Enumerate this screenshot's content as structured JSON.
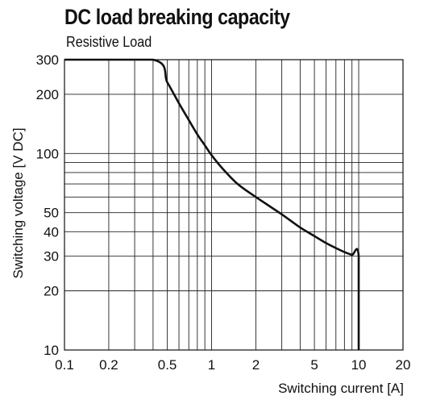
{
  "chart_data": {
    "type": "line",
    "title": "DC load breaking capacity",
    "subtitle": "Resistive Load",
    "xlabel": "Switching current [A]",
    "ylabel": "Switching voltage [V DC]",
    "x_scale": "log",
    "y_scale": "log",
    "xlim": [
      0.1,
      20
    ],
    "ylim": [
      10,
      300
    ],
    "x_tick_labels": [
      {
        "value": 0.1,
        "label": "0.1"
      },
      {
        "value": 0.2,
        "label": "0.2"
      },
      {
        "value": 0.5,
        "label": "0.5"
      },
      {
        "value": 1,
        "label": "1"
      },
      {
        "value": 2,
        "label": "2"
      },
      {
        "value": 5,
        "label": "5"
      },
      {
        "value": 10,
        "label": "10"
      },
      {
        "value": 20,
        "label": "20"
      }
    ],
    "y_tick_labels": [
      {
        "value": 300,
        "label": "300"
      },
      {
        "value": 200,
        "label": "200"
      },
      {
        "value": 100,
        "label": "100"
      },
      {
        "value": 50,
        "label": "50"
      },
      {
        "value": 40,
        "label": "40"
      },
      {
        "value": 30,
        "label": "30"
      },
      {
        "value": 20,
        "label": "20"
      },
      {
        "value": 10,
        "label": "10"
      }
    ],
    "x_gridlines": [
      0.1,
      0.2,
      0.3,
      0.4,
      0.5,
      0.6,
      0.7,
      0.8,
      0.9,
      1,
      2,
      3,
      4,
      5,
      6,
      7,
      8,
      9,
      10,
      20
    ],
    "y_gridlines": [
      10,
      20,
      30,
      40,
      50,
      60,
      70,
      80,
      90,
      100,
      200,
      300
    ],
    "grid": true,
    "series": [
      {
        "color": "#111111",
        "points": [
          [
            0.1,
            300
          ],
          [
            0.4,
            300
          ],
          [
            0.5,
            230
          ],
          [
            0.6,
            180
          ],
          [
            0.7,
            148
          ],
          [
            0.8,
            125
          ],
          [
            0.9,
            110
          ],
          [
            1,
            98
          ],
          [
            1.2,
            83
          ],
          [
            1.5,
            70
          ],
          [
            2,
            60
          ],
          [
            3,
            49
          ],
          [
            4,
            42
          ],
          [
            5,
            38
          ],
          [
            6,
            35
          ],
          [
            7,
            33
          ],
          [
            8,
            31.5
          ],
          [
            9,
            30.5
          ],
          [
            10,
            30
          ],
          [
            10,
            10
          ]
        ]
      }
    ]
  }
}
